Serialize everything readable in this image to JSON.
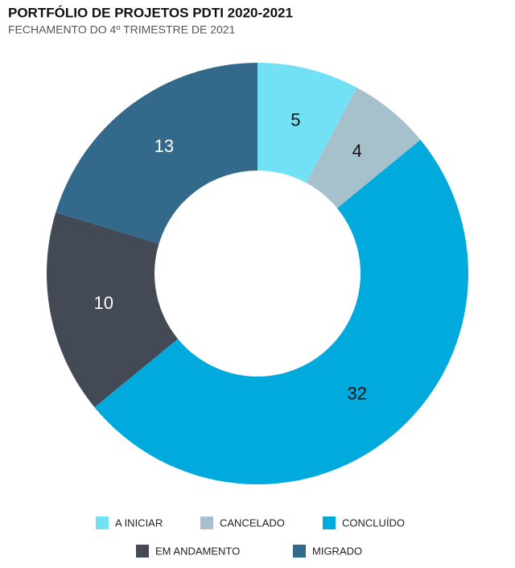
{
  "chart_data": {
    "type": "donut",
    "title": "PORTFÓLIO DE PROJETOS PDTI 2020-2021",
    "subtitle": "FECHAMENTO DO 4º TRIMESTRE DE 2021",
    "categories": [
      "A INICIAR",
      "CANCELADO",
      "CONCLUÍDO",
      "EM ANDAMENTO",
      "MIGRADO"
    ],
    "values": [
      5,
      4,
      32,
      10,
      13
    ],
    "colors": [
      "#72e0f5",
      "#a6c0cc",
      "#00aadc",
      "#434a56",
      "#336a8c"
    ]
  }
}
